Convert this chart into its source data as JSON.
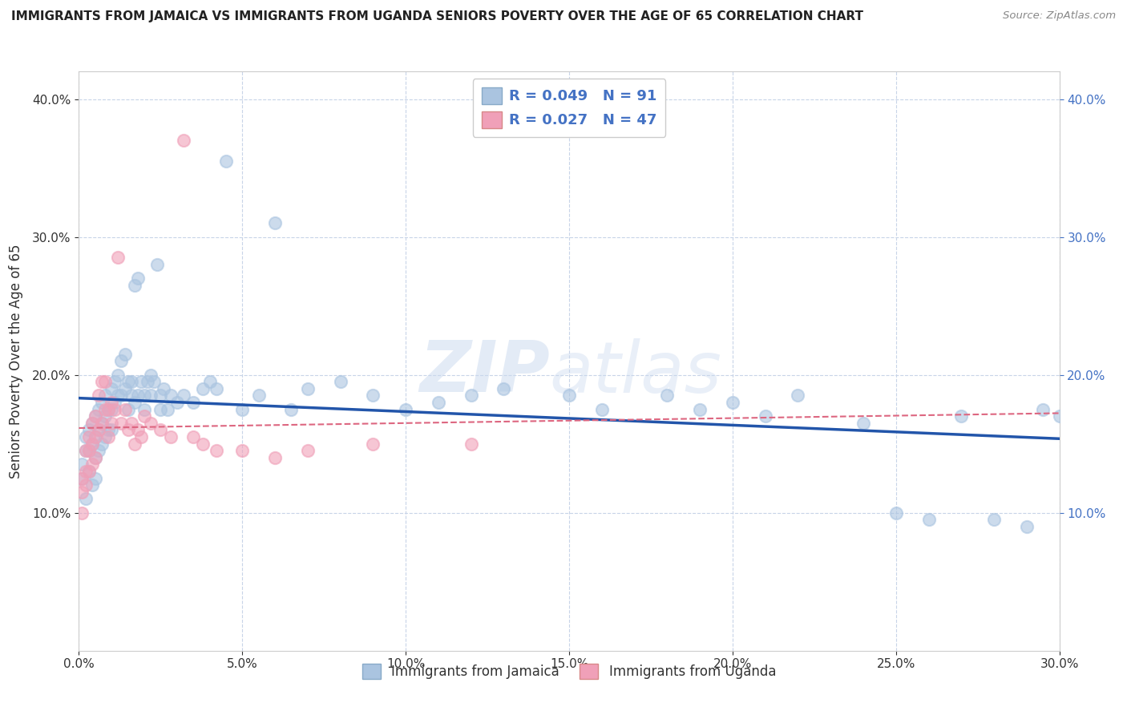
{
  "title": "IMMIGRANTS FROM JAMAICA VS IMMIGRANTS FROM UGANDA SENIORS POVERTY OVER THE AGE OF 65 CORRELATION CHART",
  "source": "Source: ZipAtlas.com",
  "ylabel": "Seniors Poverty Over the Age of 65",
  "xlim": [
    0.0,
    0.3
  ],
  "ylim": [
    0.0,
    0.42
  ],
  "x_tick_values": [
    0.0,
    0.05,
    0.1,
    0.15,
    0.2,
    0.25,
    0.3
  ],
  "y_tick_values": [
    0.1,
    0.2,
    0.3,
    0.4
  ],
  "legend_labels": [
    "Immigrants from Jamaica",
    "Immigrants from Uganda"
  ],
  "jamaica_color": "#aac4e0",
  "uganda_color": "#f0a0b8",
  "jamaica_line_color": "#2255aa",
  "uganda_line_color": "#dd6680",
  "r_jamaica": "0.049",
  "n_jamaica": "91",
  "r_uganda": "0.027",
  "n_uganda": "47",
  "jamaica_x": [
    0.001,
    0.001,
    0.002,
    0.002,
    0.002,
    0.003,
    0.003,
    0.003,
    0.004,
    0.004,
    0.004,
    0.005,
    0.005,
    0.005,
    0.005,
    0.006,
    0.006,
    0.006,
    0.007,
    0.007,
    0.007,
    0.008,
    0.008,
    0.008,
    0.009,
    0.009,
    0.01,
    0.01,
    0.01,
    0.011,
    0.011,
    0.012,
    0.012,
    0.013,
    0.013,
    0.014,
    0.014,
    0.015,
    0.015,
    0.016,
    0.016,
    0.017,
    0.017,
    0.018,
    0.018,
    0.019,
    0.02,
    0.02,
    0.021,
    0.022,
    0.022,
    0.023,
    0.024,
    0.025,
    0.025,
    0.026,
    0.027,
    0.028,
    0.03,
    0.032,
    0.035,
    0.038,
    0.04,
    0.042,
    0.045,
    0.05,
    0.055,
    0.06,
    0.065,
    0.07,
    0.08,
    0.09,
    0.1,
    0.11,
    0.12,
    0.13,
    0.15,
    0.16,
    0.18,
    0.19,
    0.2,
    0.21,
    0.22,
    0.24,
    0.25,
    0.26,
    0.27,
    0.28,
    0.29,
    0.295,
    0.3
  ],
  "jamaica_y": [
    0.135,
    0.125,
    0.155,
    0.145,
    0.11,
    0.16,
    0.145,
    0.13,
    0.165,
    0.15,
    0.12,
    0.17,
    0.155,
    0.14,
    0.125,
    0.175,
    0.16,
    0.145,
    0.18,
    0.165,
    0.15,
    0.185,
    0.17,
    0.155,
    0.175,
    0.16,
    0.19,
    0.175,
    0.16,
    0.195,
    0.18,
    0.2,
    0.185,
    0.21,
    0.185,
    0.215,
    0.19,
    0.195,
    0.175,
    0.195,
    0.185,
    0.265,
    0.18,
    0.27,
    0.185,
    0.195,
    0.185,
    0.175,
    0.195,
    0.2,
    0.185,
    0.195,
    0.28,
    0.185,
    0.175,
    0.19,
    0.175,
    0.185,
    0.18,
    0.185,
    0.18,
    0.19,
    0.195,
    0.19,
    0.355,
    0.175,
    0.185,
    0.31,
    0.175,
    0.19,
    0.195,
    0.185,
    0.175,
    0.18,
    0.185,
    0.19,
    0.185,
    0.175,
    0.185,
    0.175,
    0.18,
    0.17,
    0.185,
    0.165,
    0.1,
    0.095,
    0.17,
    0.095,
    0.09,
    0.175,
    0.17
  ],
  "uganda_x": [
    0.001,
    0.001,
    0.001,
    0.002,
    0.002,
    0.002,
    0.003,
    0.003,
    0.003,
    0.004,
    0.004,
    0.004,
    0.005,
    0.005,
    0.005,
    0.006,
    0.006,
    0.007,
    0.007,
    0.008,
    0.008,
    0.009,
    0.009,
    0.01,
    0.01,
    0.011,
    0.012,
    0.013,
    0.014,
    0.015,
    0.016,
    0.017,
    0.018,
    0.019,
    0.02,
    0.022,
    0.025,
    0.028,
    0.032,
    0.035,
    0.038,
    0.042,
    0.05,
    0.06,
    0.07,
    0.09,
    0.12
  ],
  "uganda_y": [
    0.125,
    0.115,
    0.1,
    0.145,
    0.13,
    0.12,
    0.155,
    0.145,
    0.13,
    0.165,
    0.15,
    0.135,
    0.17,
    0.155,
    0.14,
    0.185,
    0.16,
    0.195,
    0.165,
    0.195,
    0.175,
    0.175,
    0.155,
    0.18,
    0.165,
    0.175,
    0.285,
    0.165,
    0.175,
    0.16,
    0.165,
    0.15,
    0.16,
    0.155,
    0.17,
    0.165,
    0.16,
    0.155,
    0.37,
    0.155,
    0.15,
    0.145,
    0.145,
    0.14,
    0.145,
    0.15,
    0.15
  ],
  "watermark_zip": "ZIP",
  "watermark_atlas": "atlas",
  "background_color": "#ffffff",
  "grid_color": "#c8d4e8"
}
